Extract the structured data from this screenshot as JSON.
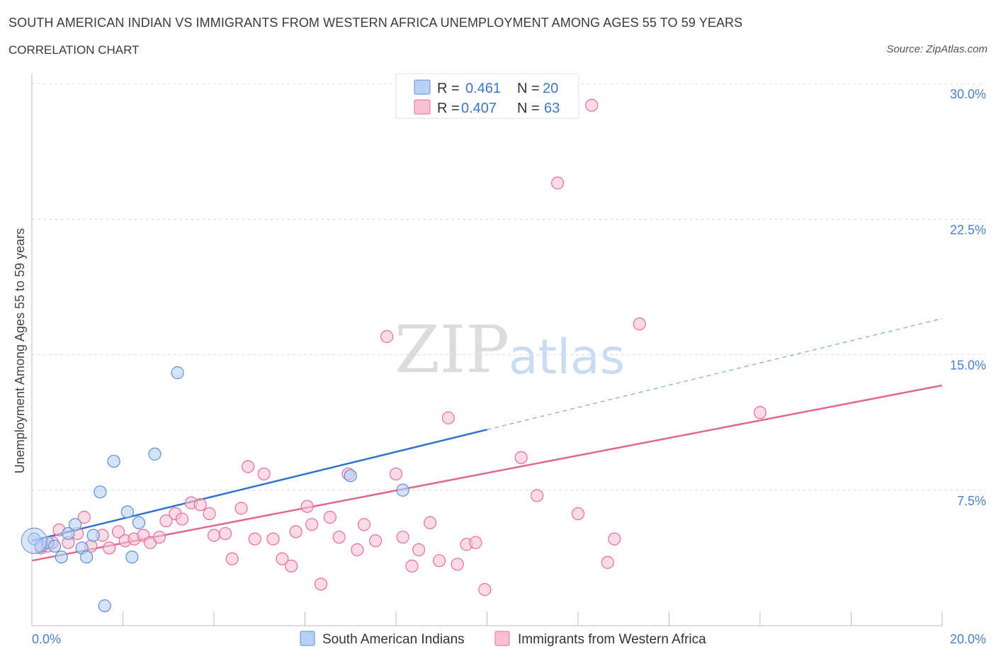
{
  "header": {
    "title": "SOUTH AMERICAN INDIAN VS IMMIGRANTS FROM WESTERN AFRICA UNEMPLOYMENT AMONG AGES 55 TO 59 YEARS",
    "subtitle": "CORRELATION CHART",
    "source": "Source: ZipAtlas.com"
  },
  "watermark": {
    "zip": "ZIP",
    "atlas": "atlas"
  },
  "legend": {
    "rows": [
      {
        "r_label": "R =",
        "r_value": "0.461",
        "n_label": "N =",
        "n_value": "20"
      },
      {
        "r_label": "R =",
        "r_value": "0.407",
        "n_label": "N =",
        "n_value": "63"
      }
    ]
  },
  "chart_data": {
    "type": "scatter",
    "ylabel": "Unemployment Among Ages 55 to 59 years",
    "xlim": [
      0,
      20
    ],
    "ylim": [
      0,
      30
    ],
    "x_tick_labels": [
      "0.0%",
      "20.0%"
    ],
    "y_ticks": [
      7.5,
      15.0,
      22.5,
      30.0
    ],
    "y_tick_labels": [
      "7.5%",
      "15.0%",
      "22.5%",
      "30.0%"
    ],
    "grid": true,
    "colors": {
      "blue": "#5b8fd6",
      "blue_fill": "#b7d0f3",
      "pink": "#e86d97",
      "pink_fill": "#f7c1d2"
    },
    "series": [
      {
        "name": "South American Indians",
        "color": "#5b8fd6",
        "points": [
          [
            0.05,
            4.8
          ],
          [
            0.2,
            4.4
          ],
          [
            0.35,
            4.6
          ],
          [
            0.5,
            4.4
          ],
          [
            0.65,
            3.8
          ],
          [
            0.8,
            5.1
          ],
          [
            0.95,
            5.6
          ],
          [
            1.1,
            4.3
          ],
          [
            1.2,
            3.8
          ],
          [
            1.35,
            5.0
          ],
          [
            1.5,
            7.4
          ],
          [
            1.6,
            1.1
          ],
          [
            1.8,
            9.1
          ],
          [
            2.1,
            6.3
          ],
          [
            2.2,
            3.8
          ],
          [
            2.35,
            5.7
          ],
          [
            2.7,
            9.5
          ],
          [
            3.2,
            14.0
          ],
          [
            7.0,
            8.3
          ],
          [
            8.15,
            7.5
          ]
        ],
        "trend": {
          "x0": 0,
          "y0": 4.7,
          "x_solid_end": 10.0,
          "x_dash_end": 20.0,
          "y_end": 17.0
        }
      },
      {
        "name": "Immigrants from Western Africa",
        "color": "#e86d97",
        "points": [
          [
            0.2,
            4.3
          ],
          [
            0.35,
            4.4
          ],
          [
            0.45,
            4.6
          ],
          [
            0.6,
            5.3
          ],
          [
            0.8,
            4.6
          ],
          [
            1.0,
            5.1
          ],
          [
            1.15,
            6.0
          ],
          [
            1.3,
            4.4
          ],
          [
            1.55,
            5.0
          ],
          [
            1.7,
            4.3
          ],
          [
            1.9,
            5.2
          ],
          [
            2.05,
            4.7
          ],
          [
            2.25,
            4.8
          ],
          [
            2.45,
            5.0
          ],
          [
            2.6,
            4.6
          ],
          [
            2.8,
            4.9
          ],
          [
            2.95,
            5.8
          ],
          [
            3.15,
            6.2
          ],
          [
            3.3,
            5.9
          ],
          [
            3.5,
            6.8
          ],
          [
            3.7,
            6.7
          ],
          [
            3.9,
            6.2
          ],
          [
            4.0,
            5.0
          ],
          [
            4.25,
            5.1
          ],
          [
            4.4,
            3.7
          ],
          [
            4.6,
            6.5
          ],
          [
            4.75,
            8.8
          ],
          [
            4.9,
            4.8
          ],
          [
            5.1,
            8.4
          ],
          [
            5.3,
            4.8
          ],
          [
            5.5,
            3.7
          ],
          [
            5.7,
            3.3
          ],
          [
            5.8,
            5.2
          ],
          [
            6.05,
            6.6
          ],
          [
            6.15,
            5.6
          ],
          [
            6.35,
            2.3
          ],
          [
            6.55,
            6.0
          ],
          [
            6.75,
            4.9
          ],
          [
            6.95,
            8.4
          ],
          [
            7.15,
            4.2
          ],
          [
            7.3,
            5.6
          ],
          [
            7.55,
            4.7
          ],
          [
            7.8,
            16.0
          ],
          [
            8.0,
            8.4
          ],
          [
            8.15,
            4.9
          ],
          [
            8.35,
            3.3
          ],
          [
            8.5,
            4.2
          ],
          [
            8.75,
            5.7
          ],
          [
            8.95,
            3.6
          ],
          [
            9.15,
            11.5
          ],
          [
            9.35,
            3.4
          ],
          [
            9.55,
            4.5
          ],
          [
            9.75,
            4.6
          ],
          [
            9.95,
            2.0
          ],
          [
            10.75,
            9.3
          ],
          [
            11.1,
            7.2
          ],
          [
            11.55,
            24.5
          ],
          [
            12.0,
            6.2
          ],
          [
            12.3,
            28.8
          ],
          [
            12.65,
            3.5
          ],
          [
            12.8,
            4.8
          ],
          [
            13.35,
            16.7
          ],
          [
            16.0,
            11.8
          ]
        ],
        "trend": {
          "x0": 0,
          "y0": 3.6,
          "x_end": 20.0,
          "y_end": 13.3
        }
      }
    ]
  }
}
